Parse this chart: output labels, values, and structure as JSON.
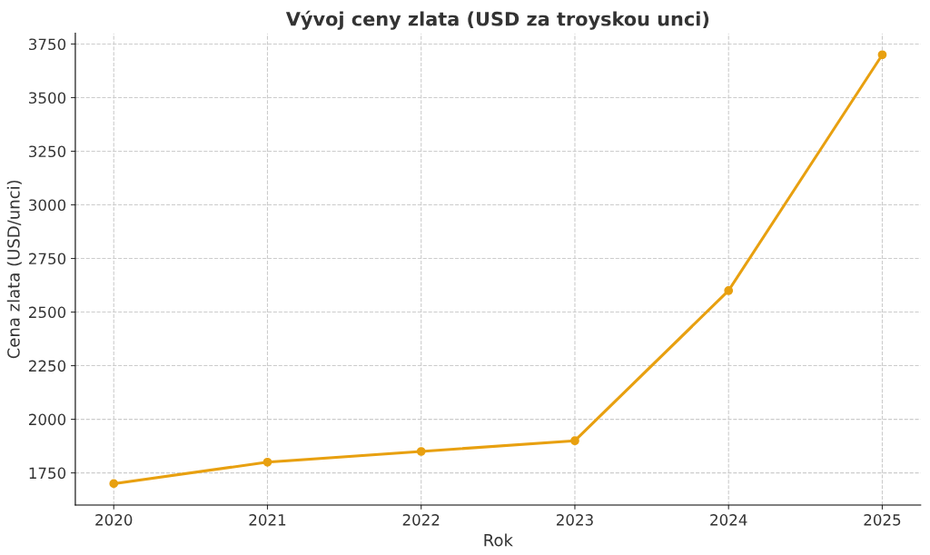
{
  "chart_data": {
    "type": "line",
    "title": "Vývoj ceny zlata (USD za troyskou unci)",
    "xlabel": "Rok",
    "ylabel": "Cena zlata (USD/unci)",
    "x": [
      2020,
      2021,
      2022,
      2023,
      2024,
      2025
    ],
    "series": [
      {
        "color": "#e8a010",
        "values": [
          1700,
          1800,
          1850,
          1900,
          2600,
          3700
        ]
      }
    ],
    "xlim": [
      2019.75,
      2025.25
    ],
    "xticks": [
      2020,
      2021,
      2022,
      2023,
      2024,
      2025
    ],
    "ylim": [
      1600,
      3800
    ],
    "yticks": [
      1750,
      2000,
      2250,
      2500,
      2750,
      3000,
      3250,
      3500,
      3750
    ],
    "grid": true,
    "marker": "circle",
    "line_style": "solid"
  }
}
